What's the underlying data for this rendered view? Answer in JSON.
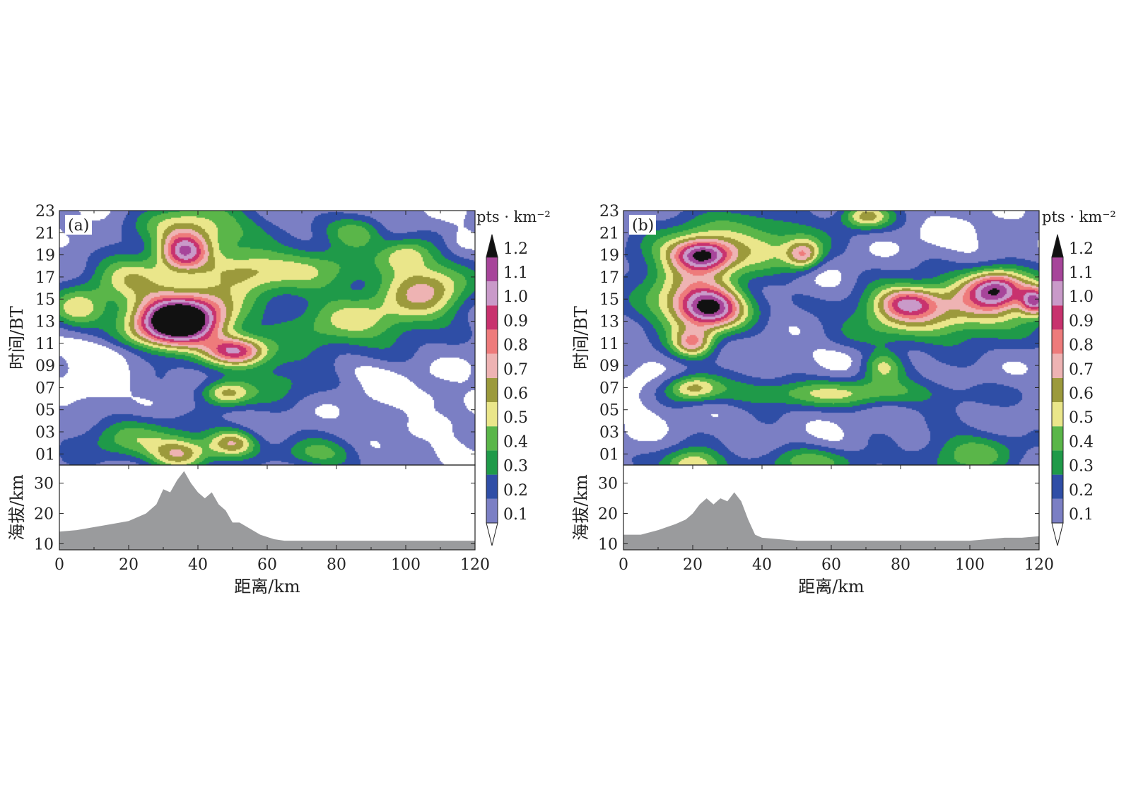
{
  "panels": [
    {
      "label": "(a)",
      "time_ylabel": "时间/BT",
      "time_ticks": [
        "01",
        "03",
        "05",
        "07",
        "09",
        "11",
        "13",
        "15",
        "17",
        "19",
        "21",
        "23"
      ],
      "elev_ylabel": "海拔/km",
      "elev_ticks": [
        "10",
        "20",
        "30"
      ],
      "xticks": [
        "0",
        "20",
        "40",
        "60",
        "80",
        "100",
        "120"
      ],
      "xlabel": "距离/km",
      "colorbar_unit": "pts · km⁻²",
      "colorbar_labels": [
        "0.1",
        "0.2",
        "0.3",
        "0.4",
        "0.5",
        "0.6",
        "0.7",
        "0.8",
        "0.9",
        "1.0",
        "1.1",
        "1.2"
      ]
    },
    {
      "label": "(b)",
      "time_ylabel": "时间/BT",
      "time_ticks": [
        "01",
        "03",
        "05",
        "07",
        "09",
        "11",
        "13",
        "15",
        "17",
        "19",
        "21",
        "23"
      ],
      "elev_ylabel": "海拔/km",
      "elev_ticks": [
        "10",
        "20",
        "30"
      ],
      "xticks": [
        "0",
        "20",
        "40",
        "60",
        "80",
        "100",
        "120"
      ],
      "xlabel": "距离/km",
      "colorbar_unit": "pts · km⁻²",
      "colorbar_labels": [
        "0.1",
        "0.2",
        "0.3",
        "0.4",
        "0.5",
        "0.6",
        "0.7",
        "0.8",
        "0.9",
        "1.0",
        "1.1",
        "1.2"
      ]
    }
  ],
  "chart_data": [
    {
      "type": "heatmap",
      "panel": "(a)",
      "x_range_km": [
        0,
        120
      ],
      "time_range_BT": [
        0,
        23
      ],
      "levels": [
        0,
        0.1,
        0.2,
        0.3,
        0.4,
        0.5,
        0.6,
        0.7,
        0.8,
        0.9,
        1.0,
        1.1,
        1.2
      ],
      "level_colors": [
        "#ffffff",
        "#7b7fc4",
        "#2f4ea6",
        "#1f9a49",
        "#5ab649",
        "#eae68a",
        "#9c9a3c",
        "#eeb3b3",
        "#ee7b7b",
        "#c8326e",
        "#c99ac9",
        "#a7459a",
        "#111111"
      ],
      "background_value": 0.12,
      "blobs": [
        {
          "x": 33,
          "t": 12.9,
          "peak": 1.3,
          "sx": 9,
          "st": 1.7
        },
        {
          "x": 43,
          "t": 14.3,
          "peak": 0.35,
          "sx": 9,
          "st": 2.2
        },
        {
          "x": 36,
          "t": 19.3,
          "peak": 0.75,
          "sx": 5,
          "st": 1.2
        },
        {
          "x": 51,
          "t": 10.3,
          "peak": 0.72,
          "sx": 6,
          "st": 0.9
        },
        {
          "x": 55,
          "t": 17.5,
          "peak": 0.45,
          "sx": 9,
          "st": 1.3
        },
        {
          "x": 20,
          "t": 17.0,
          "peak": 0.4,
          "sx": 9,
          "st": 1.6
        },
        {
          "x": 5,
          "t": 14.0,
          "peak": 0.4,
          "sx": 6,
          "st": 1.3
        },
        {
          "x": 40,
          "t": 21.5,
          "peak": 0.45,
          "sx": 12,
          "st": 1.6
        },
        {
          "x": 48,
          "t": 6.5,
          "peak": 0.5,
          "sx": 5,
          "st": 0.8
        },
        {
          "x": 35,
          "t": 1.0,
          "peak": 0.55,
          "sx": 6,
          "st": 1.0
        },
        {
          "x": 50,
          "t": 2.0,
          "peak": 0.55,
          "sx": 5,
          "st": 0.9
        },
        {
          "x": 84,
          "t": 13.0,
          "peak": 0.38,
          "sx": 14,
          "st": 2.0
        },
        {
          "x": 106,
          "t": 16.0,
          "peak": 0.55,
          "sx": 9,
          "st": 2.0
        },
        {
          "x": 75,
          "t": 18.0,
          "peak": 0.3,
          "sx": 10,
          "st": 1.5
        },
        {
          "x": 86,
          "t": 21.0,
          "peak": 0.35,
          "sx": 6,
          "st": 1.0
        },
        {
          "x": 100,
          "t": 19.0,
          "peak": 0.32,
          "sx": 5,
          "st": 1.0
        },
        {
          "x": 63,
          "t": 8.0,
          "peak": 0.22,
          "sx": 10,
          "st": 2.0
        },
        {
          "x": 75,
          "t": 1.0,
          "peak": 0.32,
          "sx": 8,
          "st": 1.0
        },
        {
          "x": 20,
          "t": 2.5,
          "peak": 0.3,
          "sx": 12,
          "st": 1.5
        },
        {
          "x": 10,
          "t": 7.0,
          "peak": -0.1,
          "sx": 6,
          "st": 2.5
        },
        {
          "x": 12,
          "t": 10.3,
          "peak": -0.1,
          "sx": 12,
          "st": 0.8
        },
        {
          "x": 88,
          "t": 8.5,
          "peak": -0.08,
          "sx": 8,
          "st": 0.8
        },
        {
          "x": 106,
          "t": 6.0,
          "peak": -0.08,
          "sx": 8,
          "st": 0.8
        },
        {
          "x": 112,
          "t": 1.2,
          "peak": -0.08,
          "sx": 4,
          "st": 0.8
        },
        {
          "x": 8,
          "t": 20.2,
          "peak": -0.08,
          "sx": 6,
          "st": 0.8
        },
        {
          "x": 115,
          "t": 20.0,
          "peak": -0.08,
          "sx": 3,
          "st": 1.0
        }
      ],
      "terrain_x_km": [
        0,
        5,
        10,
        15,
        20,
        25,
        28,
        30,
        32,
        34,
        36,
        38,
        40,
        42,
        44,
        46,
        48,
        50,
        52,
        55,
        58,
        62,
        65,
        70,
        80,
        100,
        120
      ],
      "terrain_elev_km": [
        14,
        14.5,
        15.5,
        16.5,
        17.5,
        20,
        23,
        28,
        27,
        31,
        34,
        30,
        27,
        25,
        27,
        23,
        21,
        17,
        17,
        15,
        13,
        11.5,
        11,
        11,
        11,
        11,
        11
      ]
    },
    {
      "type": "heatmap",
      "panel": "(b)",
      "x_range_km": [
        0,
        120
      ],
      "time_range_BT": [
        0,
        23
      ],
      "levels": [
        0,
        0.1,
        0.2,
        0.3,
        0.4,
        0.5,
        0.6,
        0.7,
        0.8,
        0.9,
        1.0,
        1.1,
        1.2
      ],
      "level_colors": [
        "#ffffff",
        "#7b7fc4",
        "#2f4ea6",
        "#1f9a49",
        "#5ab649",
        "#eae68a",
        "#9c9a3c",
        "#eeb3b3",
        "#ee7b7b",
        "#c8326e",
        "#c99ac9",
        "#a7459a",
        "#111111"
      ],
      "background_value": 0.14,
      "blobs": [
        {
          "x": 25,
          "t": 14.2,
          "peak": 0.92,
          "sx": 7,
          "st": 1.3
        },
        {
          "x": 23,
          "t": 19.0,
          "peak": 0.8,
          "sx": 6,
          "st": 1.0
        },
        {
          "x": 20,
          "t": 11.0,
          "peak": 0.5,
          "sx": 4,
          "st": 0.9
        },
        {
          "x": 18,
          "t": 16.5,
          "peak": 0.4,
          "sx": 10,
          "st": 3.5
        },
        {
          "x": 40,
          "t": 20.0,
          "peak": 0.35,
          "sx": 12,
          "st": 2.0
        },
        {
          "x": 52,
          "t": 19.0,
          "peak": 0.5,
          "sx": 3.5,
          "st": 0.9
        },
        {
          "x": 70,
          "t": 22.5,
          "peak": 0.5,
          "sx": 5,
          "st": 0.8
        },
        {
          "x": 82,
          "t": 14.7,
          "peak": 0.55,
          "sx": 6,
          "st": 1.0
        },
        {
          "x": 80,
          "t": 13.5,
          "peak": 0.35,
          "sx": 13,
          "st": 2.0
        },
        {
          "x": 108,
          "t": 16.0,
          "peak": 0.7,
          "sx": 6,
          "st": 1.2
        },
        {
          "x": 119,
          "t": 14.8,
          "peak": 0.8,
          "sx": 3,
          "st": 0.9
        },
        {
          "x": 104,
          "t": 14.5,
          "peak": 0.45,
          "sx": 12,
          "st": 2.0
        },
        {
          "x": 60,
          "t": 6.5,
          "peak": 0.35,
          "sx": 25,
          "st": 0.9
        },
        {
          "x": 20,
          "t": 7.0,
          "peak": 0.4,
          "sx": 5,
          "st": 0.8
        },
        {
          "x": 75,
          "t": 9.0,
          "peak": 0.35,
          "sx": 4,
          "st": 1.0
        },
        {
          "x": 20,
          "t": 0.0,
          "peak": 0.5,
          "sx": 6,
          "st": 1.0
        },
        {
          "x": 56,
          "t": 0.3,
          "peak": 0.3,
          "sx": 12,
          "st": 1.0
        },
        {
          "x": 100,
          "t": 1.0,
          "peak": 0.3,
          "sx": 10,
          "st": 1.5
        },
        {
          "x": 60,
          "t": 16.5,
          "peak": -0.1,
          "sx": 7,
          "st": 1.3
        },
        {
          "x": 5,
          "t": 6.5,
          "peak": -0.1,
          "sx": 5,
          "st": 2.5
        },
        {
          "x": 63,
          "t": 10.0,
          "peak": -0.08,
          "sx": 10,
          "st": 0.8
        },
        {
          "x": 62,
          "t": 1.5,
          "peak": -0.08,
          "sx": 6,
          "st": 1.0
        },
        {
          "x": 97,
          "t": 20.0,
          "peak": -0.08,
          "sx": 10,
          "st": 1.5
        }
      ],
      "terrain_x_km": [
        0,
        5,
        10,
        15,
        18,
        20,
        22,
        24,
        26,
        28,
        30,
        32,
        34,
        36,
        38,
        40,
        45,
        50,
        60,
        80,
        100,
        105,
        110,
        115,
        120
      ],
      "terrain_elev_km": [
        13,
        13,
        14.5,
        16.5,
        18,
        20,
        23,
        25,
        23,
        25,
        24,
        27,
        24,
        18,
        13,
        12,
        11.5,
        11,
        11,
        11,
        11,
        11.5,
        12,
        12,
        12.5
      ]
    }
  ]
}
